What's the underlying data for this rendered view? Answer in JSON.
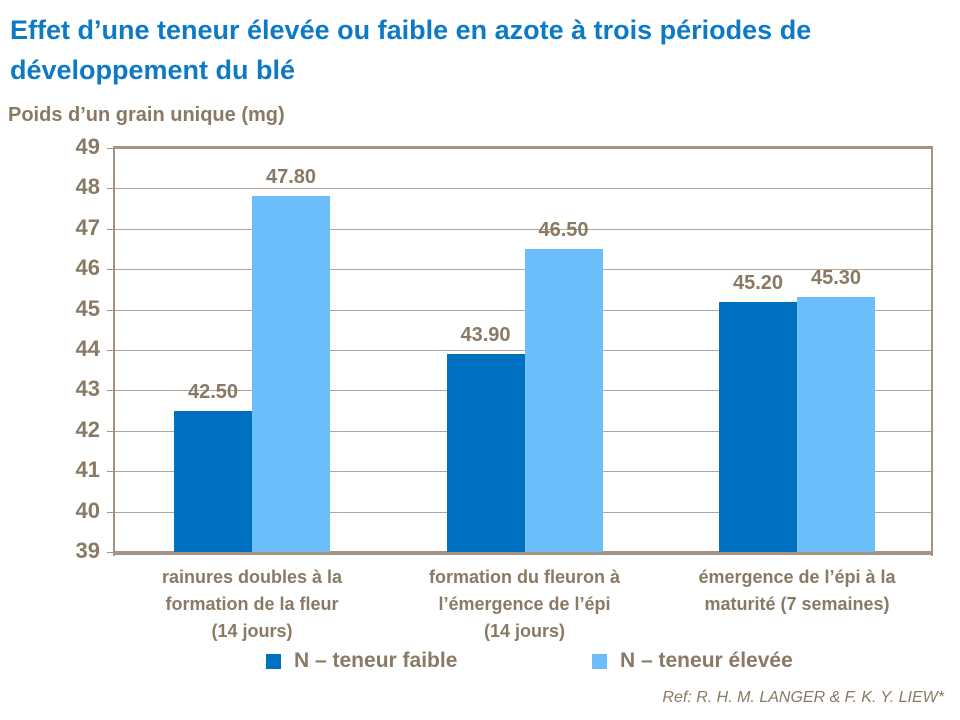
{
  "title": "Effet d’une teneur élevée ou faible en azote à trois périodes de développement du blé",
  "reference": "Ref: R. H. M. LANGER & F. K. Y. LIEW*",
  "colors": {
    "background": "#FFFFFF",
    "title_blue": "#0E7AC6",
    "text_brown": "#8A7964",
    "grid_line": "#B3A698",
    "axis_line": "#A39585",
    "series_dark_blue": "#0070C0",
    "series_light_blue": "#6CBEFB"
  },
  "chart_data": {
    "type": "bar",
    "title": "Effet d’une teneur élevée ou faible en azote à trois périodes de développement du blé",
    "xlabel": "",
    "ylabel": "Poids d’un grain unique (mg)",
    "ylim": [
      39,
      49
    ],
    "ytick_step": 1,
    "grid": true,
    "legend_position": "bottom",
    "value_labels_shown": true,
    "categories": [
      "rainures doubles à la formation de la fleur (14 jours)",
      "formation du fleuron à l’émergence de l’épi (14 jours)",
      "émergence de l’épi à la maturité (7 semaines)"
    ],
    "category_lines": [
      [
        "rainures doubles à la",
        "formation de la fleur",
        "(14 jours)"
      ],
      [
        "formation du fleuron à",
        "l’émergence de l’épi",
        "(14 jours)"
      ],
      [
        "émergence de l’épi à la",
        "maturité (7 semaines)"
      ]
    ],
    "series": [
      {
        "name": "N – teneur faible",
        "color": "#0070C0",
        "values": [
          42.5,
          43.9,
          45.2
        ]
      },
      {
        "name": "N – teneur élevée",
        "color": "#6CBEFB",
        "values": [
          47.8,
          46.5,
          45.3
        ]
      }
    ]
  }
}
